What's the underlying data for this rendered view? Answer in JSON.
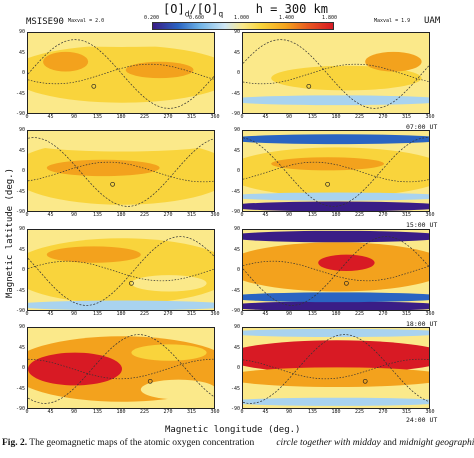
{
  "header": {
    "title_left": "[O]",
    "title_sub1": "d",
    "title_slash": "/[O]",
    "title_sub2": "q",
    "title_right": "h = 300 km",
    "left_model": "MSISE90",
    "left_max": "Maxval = 2.0",
    "right_max": "Maxval = 1.9",
    "right_model": "UAM",
    "colorbar_ticks": [
      "0.200",
      "0.600",
      "1.000",
      "1.400",
      "1.800"
    ],
    "colorbar_colors": [
      "#3a1d86",
      "#6fb3e6",
      "#ffe680",
      "#f7b52c",
      "#d81a24"
    ]
  },
  "axes": {
    "y_ticks": [
      "90",
      "45",
      "0",
      "-45",
      "-90"
    ],
    "x_ticks": [
      "0",
      "45",
      "90",
      "135",
      "180",
      "225",
      "270",
      "315",
      "360"
    ],
    "y_label": "Magnetic latitude (deg.)",
    "x_label": "Magnetic longitude (deg.)"
  },
  "rows": [
    {
      "time_label": ""
    },
    {
      "time_label": "07:00 UT"
    },
    {
      "time_label": "15:00 UT"
    },
    {
      "time_label": "18:00 UT"
    }
  ],
  "bottom_time_label": "24:00 UT",
  "caption": {
    "fig": "Fig. 2.",
    "text1": " The geomagnetic maps of the atomic oxygen concentration",
    "text2_pre": "circle together with ",
    "midday": "midday",
    "and": " and ",
    "midnight": "midnight geographic"
  },
  "colors": {
    "yellow": "#f9d43c",
    "pale_yellow": "#fbe98a",
    "orange": "#f3a21d",
    "red": "#d81a24",
    "light_blue": "#a9d3ef",
    "blue": "#2a64c2",
    "purple": "#3a1d86"
  }
}
